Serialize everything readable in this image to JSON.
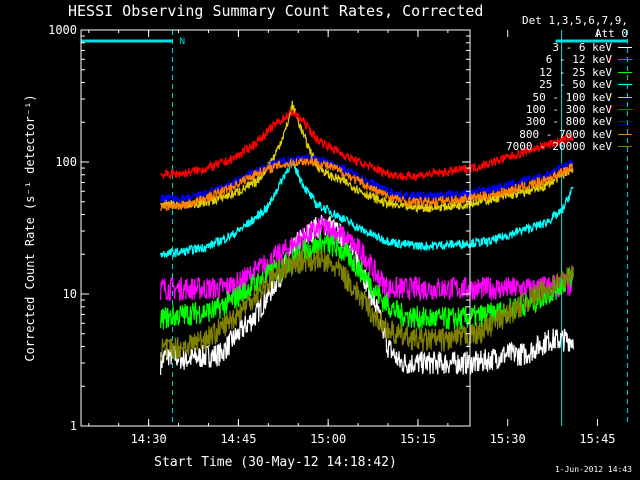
{
  "chart_data": {
    "type": "line",
    "title": "HESSI Observing Summary Count Rates, Corrected",
    "xlabel": "Start Time (30-May-12 14:18:42)",
    "ylabel": "Corrected Count Rate (s⁻¹ detector⁻¹)",
    "y_scale": "log",
    "ylim": [
      1,
      1000
    ],
    "xlim_minutes_after_14_18_42": [
      0,
      65
    ],
    "x_tick_labels": [
      "14:30",
      "14:45",
      "15:00",
      "15:15",
      "15:30",
      "15:45"
    ],
    "y_tick_labels": [
      "1",
      "10",
      "100",
      "1000"
    ],
    "detector_note_1": "Det 1,3,5,6,7,9,",
    "detector_note_2": "Att 0",
    "annotations": {
      "night_label": "N"
    },
    "timestamp": "1-Jun-2012 14:43",
    "intervals": [
      {
        "kind": "night",
        "start": "14:34",
        "end": "15:39"
      },
      {
        "kind": "saa",
        "start": "15:38",
        "end": "15:50"
      }
    ],
    "grid": false,
    "legend_placement": "right, outside plot",
    "series": [
      {
        "name": "3 - 6 keV",
        "color": "#ffffff",
        "points": [
          [
            "14:32",
            3
          ],
          [
            "14:33",
            3.5
          ],
          [
            "14:36",
            3.2
          ],
          [
            "14:42",
            3.5
          ],
          [
            "14:45",
            5
          ],
          [
            "14:48",
            7
          ],
          [
            "14:52",
            14
          ],
          [
            "14:55",
            25
          ],
          [
            "14:58",
            32
          ],
          [
            "15:00",
            34
          ],
          [
            "15:02",
            28
          ],
          [
            "15:05",
            18
          ],
          [
            "15:08",
            8
          ],
          [
            "15:10",
            4
          ],
          [
            "15:12",
            3
          ],
          [
            "15:20",
            3
          ],
          [
            "15:25",
            3
          ],
          [
            "15:30",
            3.5
          ],
          [
            "15:33",
            3.5
          ],
          [
            "15:35",
            4
          ],
          [
            "15:37",
            4.5
          ],
          [
            "15:41",
            4.5
          ]
        ]
      },
      {
        "name": "6 - 12 keV",
        "color": "#ff00ff",
        "points": [
          [
            "14:32",
            11
          ],
          [
            "14:36",
            11
          ],
          [
            "14:42",
            11
          ],
          [
            "14:45",
            12
          ],
          [
            "14:48",
            15
          ],
          [
            "14:52",
            20
          ],
          [
            "14:56",
            27
          ],
          [
            "14:59",
            32
          ],
          [
            "15:01",
            30
          ],
          [
            "15:03",
            26
          ],
          [
            "15:06",
            20
          ],
          [
            "15:08",
            14
          ],
          [
            "15:10",
            11
          ],
          [
            "15:15",
            11
          ],
          [
            "15:25",
            11
          ],
          [
            "15:35",
            11
          ],
          [
            "15:41",
            12
          ]
        ]
      },
      {
        "name": "12 - 25 keV",
        "color": "#00ff00",
        "points": [
          [
            "14:32",
            6.5
          ],
          [
            "14:36",
            7
          ],
          [
            "14:41",
            7.5
          ],
          [
            "14:44",
            9
          ],
          [
            "14:48",
            12
          ],
          [
            "14:52",
            16
          ],
          [
            "14:56",
            21
          ],
          [
            "14:59",
            24
          ],
          [
            "15:01",
            23
          ],
          [
            "15:03",
            20
          ],
          [
            "15:06",
            14
          ],
          [
            "15:09",
            9
          ],
          [
            "15:12",
            7
          ],
          [
            "15:16",
            6.5
          ],
          [
            "15:22",
            6.5
          ],
          [
            "15:27",
            7
          ],
          [
            "15:30",
            7.5
          ],
          [
            "15:35",
            9
          ],
          [
            "15:38",
            11
          ],
          [
            "15:41",
            14
          ]
        ]
      },
      {
        "name": "25 - 50 keV",
        "color": "#00ffff",
        "points": [
          [
            "14:32",
            20
          ],
          [
            "14:36",
            21
          ],
          [
            "14:40",
            23
          ],
          [
            "14:44",
            28
          ],
          [
            "14:47",
            35
          ],
          [
            "14:50",
            46
          ],
          [
            "14:53",
            85
          ],
          [
            "14:54",
            100
          ],
          [
            "14:56",
            65
          ],
          [
            "14:58",
            48
          ],
          [
            "15:00",
            43
          ],
          [
            "15:03",
            36
          ],
          [
            "15:06",
            30
          ],
          [
            "15:09",
            26
          ],
          [
            "15:12",
            24
          ],
          [
            "15:16",
            23
          ],
          [
            "15:22",
            24
          ],
          [
            "15:27",
            25
          ],
          [
            "15:32",
            30
          ],
          [
            "15:36",
            34
          ],
          [
            "15:39",
            42
          ],
          [
            "15:41",
            65
          ]
        ]
      },
      {
        "name": "50 - 100 keV",
        "color": "#e0d000",
        "points": [
          [
            "14:32",
            48
          ],
          [
            "14:36",
            47
          ],
          [
            "14:40",
            50
          ],
          [
            "14:44",
            57
          ],
          [
            "14:48",
            70
          ],
          [
            "14:51",
            110
          ],
          [
            "14:53",
            180
          ],
          [
            "14:54",
            270
          ],
          [
            "14:56",
            155
          ],
          [
            "14:58",
            95
          ],
          [
            "15:00",
            80
          ],
          [
            "15:03",
            70
          ],
          [
            "15:06",
            58
          ],
          [
            "15:09",
            50
          ],
          [
            "15:12",
            46
          ],
          [
            "15:17",
            45
          ],
          [
            "15:22",
            47
          ],
          [
            "15:27",
            52
          ],
          [
            "15:32",
            58
          ],
          [
            "15:36",
            65
          ],
          [
            "15:41",
            90
          ]
        ]
      },
      {
        "name": "100 - 300 keV",
        "color": "#ff0000",
        "points": [
          [
            "14:32",
            80
          ],
          [
            "14:36",
            82
          ],
          [
            "14:40",
            90
          ],
          [
            "14:44",
            105
          ],
          [
            "14:48",
            140
          ],
          [
            "14:51",
            190
          ],
          [
            "14:54",
            240
          ],
          [
            "14:56",
            200
          ],
          [
            "14:58",
            150
          ],
          [
            "15:01",
            125
          ],
          [
            "15:04",
            105
          ],
          [
            "15:07",
            92
          ],
          [
            "15:10",
            82
          ],
          [
            "15:13",
            77
          ],
          [
            "15:16",
            80
          ],
          [
            "15:20",
            84
          ],
          [
            "15:25",
            92
          ],
          [
            "15:30",
            108
          ],
          [
            "15:35",
            128
          ],
          [
            "15:39",
            145
          ],
          [
            "15:41",
            155
          ]
        ]
      },
      {
        "name": "300 - 800 keV",
        "color": "#0000ff",
        "points": [
          [
            "14:32",
            53
          ],
          [
            "14:36",
            52
          ],
          [
            "14:40",
            58
          ],
          [
            "14:44",
            68
          ],
          [
            "14:48",
            85
          ],
          [
            "14:52",
            100
          ],
          [
            "14:56",
            108
          ],
          [
            "14:58",
            105
          ],
          [
            "15:01",
            95
          ],
          [
            "15:04",
            82
          ],
          [
            "15:07",
            70
          ],
          [
            "15:10",
            60
          ],
          [
            "15:13",
            55
          ],
          [
            "15:17",
            55
          ],
          [
            "15:22",
            57
          ],
          [
            "15:27",
            62
          ],
          [
            "15:31",
            68
          ],
          [
            "15:36",
            78
          ],
          [
            "15:41",
            100
          ]
        ]
      },
      {
        "name": "800 - 7000 keV",
        "color": "#ff8000",
        "points": [
          [
            "14:32",
            46
          ],
          [
            "14:36",
            47
          ],
          [
            "14:40",
            54
          ],
          [
            "14:44",
            65
          ],
          [
            "14:48",
            82
          ],
          [
            "14:52",
            95
          ],
          [
            "14:56",
            102
          ],
          [
            "14:58",
            100
          ],
          [
            "15:01",
            90
          ],
          [
            "15:04",
            76
          ],
          [
            "15:07",
            64
          ],
          [
            "15:10",
            55
          ],
          [
            "15:13",
            50
          ],
          [
            "15:17",
            50
          ],
          [
            "15:22",
            52
          ],
          [
            "15:27",
            56
          ],
          [
            "15:31",
            62
          ],
          [
            "15:36",
            72
          ],
          [
            "15:41",
            92
          ]
        ]
      },
      {
        "name": "7000 - 20000 keV",
        "color": "#808000",
        "points": [
          [
            "14:32",
            3.8
          ],
          [
            "14:36",
            4
          ],
          [
            "14:41",
            5
          ],
          [
            "14:44",
            6.5
          ],
          [
            "14:48",
            10
          ],
          [
            "14:52",
            15
          ],
          [
            "14:56",
            18
          ],
          [
            "14:59",
            18
          ],
          [
            "15:02",
            15
          ],
          [
            "15:05",
            10
          ],
          [
            "15:08",
            6.5
          ],
          [
            "15:11",
            5
          ],
          [
            "15:15",
            4.5
          ],
          [
            "15:20",
            4.5
          ],
          [
            "15:25",
            5
          ],
          [
            "15:30",
            7
          ],
          [
            "15:35",
            10
          ],
          [
            "15:38",
            12
          ],
          [
            "15:41",
            14
          ]
        ]
      }
    ]
  }
}
